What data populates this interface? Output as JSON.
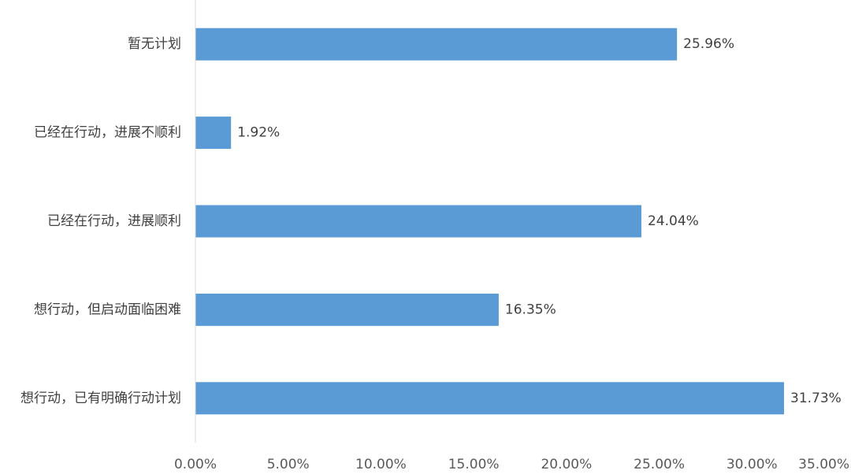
{
  "chart_data": {
    "type": "bar",
    "orientation": "horizontal",
    "categories": [
      "暂无计划",
      "已经在行动，进展不顺利",
      "已经在行动，进展顺利",
      "想行动，但启动面临困难",
      "想行动，已有明确行动计划"
    ],
    "values": [
      25.96,
      1.92,
      24.04,
      16.35,
      31.73
    ],
    "value_labels": [
      "25.96%",
      "1.92%",
      "24.04%",
      "16.35%",
      "31.73%"
    ],
    "xlim": [
      0,
      35
    ],
    "x_ticks": [
      0,
      5,
      10,
      15,
      20,
      25,
      30,
      35
    ],
    "x_tick_labels": [
      "0.00%",
      "5.00%",
      "10.00%",
      "15.00%",
      "20.00%",
      "25.00%",
      "30.00%",
      "35.00%"
    ],
    "bar_color": "#5B9BD5",
    "axis_color": "#D9D9D9",
    "title": "",
    "xlabel": "",
    "ylabel": "",
    "grid": false,
    "legend": "none"
  }
}
